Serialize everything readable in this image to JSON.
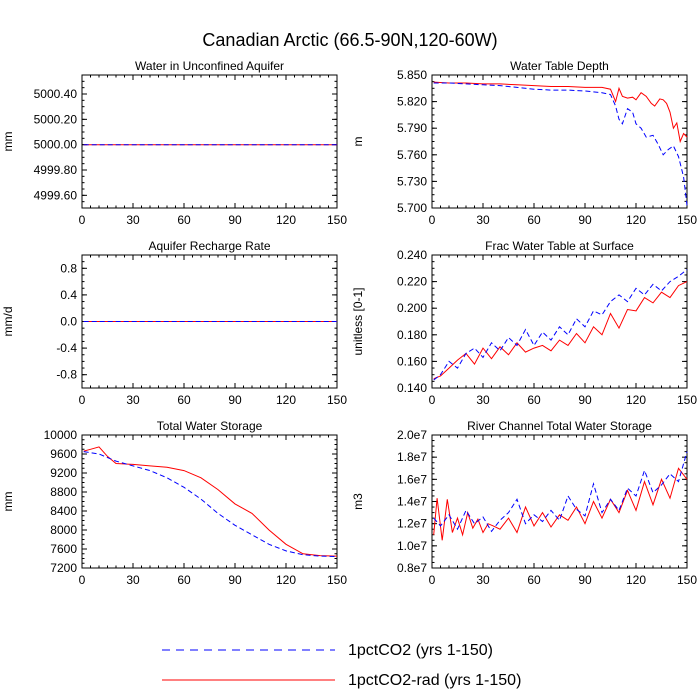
{
  "figure_title": "Canadian Arctic (66.5-90N,120-60W)",
  "legend": {
    "entries": [
      {
        "label": "1pctCO2 (yrs 1-150)",
        "color": "#0000ff",
        "dash": "dashed"
      },
      {
        "label": "1pctCO2-rad (yrs 1-150)",
        "color": "#ff0000",
        "dash": "solid"
      }
    ]
  },
  "chart_data": [
    {
      "id": "p1",
      "type": "line",
      "title": "Water in Unconfined Aquifer",
      "ylabel": "mm",
      "xlim": [
        0,
        150
      ],
      "ylim": [
        4999.5,
        5000.55
      ],
      "xticks": [
        0,
        30,
        60,
        90,
        120,
        150
      ],
      "yticks": [
        4999.6,
        4999.8,
        5000.0,
        5000.2,
        5000.4
      ],
      "ytick_labels": [
        "4999.60",
        "4999.80",
        "5000.00",
        "5000.20",
        "5000.40"
      ],
      "series": [
        {
          "name": "1pctCO2 (yrs 1-150)",
          "color": "#0000ff",
          "dash": "dashed",
          "x": [
            1,
            150
          ],
          "y": [
            5000.0,
            5000.0
          ]
        },
        {
          "name": "1pctCO2-rad (yrs 1-150)",
          "color": "#ff0000",
          "dash": "solid",
          "x": [
            1,
            150
          ],
          "y": [
            5000.0,
            5000.0
          ]
        }
      ]
    },
    {
      "id": "p2",
      "type": "line",
      "title": "Water Table Depth",
      "ylabel": "m",
      "xlim": [
        0,
        150
      ],
      "ylim": [
        5.7,
        5.85
      ],
      "xticks": [
        0,
        30,
        60,
        90,
        120,
        150
      ],
      "yticks": [
        5.7,
        5.73,
        5.76,
        5.79,
        5.82,
        5.85
      ],
      "ytick_labels": [
        "5.700",
        "5.730",
        "5.760",
        "5.790",
        "5.820",
        "5.850"
      ],
      "series": [
        {
          "name": "1pctCO2 (yrs 1-150)",
          "color": "#0000ff",
          "dash": "dashed",
          "x": [
            1,
            10,
            20,
            30,
            40,
            50,
            60,
            70,
            80,
            90,
            100,
            105,
            108,
            110,
            112,
            115,
            118,
            120,
            123,
            126,
            130,
            133,
            136,
            139,
            142,
            145,
            148,
            150
          ],
          "y": [
            5.841,
            5.841,
            5.84,
            5.839,
            5.838,
            5.836,
            5.834,
            5.833,
            5.833,
            5.832,
            5.83,
            5.828,
            5.815,
            5.8,
            5.795,
            5.812,
            5.808,
            5.795,
            5.79,
            5.78,
            5.782,
            5.772,
            5.76,
            5.766,
            5.77,
            5.758,
            5.735,
            5.703
          ]
        },
        {
          "name": "1pctCO2-rad (yrs 1-150)",
          "color": "#ff0000",
          "dash": "solid",
          "x": [
            1,
            10,
            20,
            30,
            40,
            50,
            60,
            70,
            80,
            90,
            100,
            105,
            108,
            110,
            112,
            115,
            118,
            120,
            123,
            126,
            129,
            131,
            134,
            136,
            138,
            140,
            142,
            144,
            146,
            148,
            150
          ],
          "y": [
            5.842,
            5.841,
            5.841,
            5.84,
            5.84,
            5.839,
            5.838,
            5.837,
            5.837,
            5.836,
            5.836,
            5.834,
            5.82,
            5.835,
            5.826,
            5.824,
            5.825,
            5.822,
            5.83,
            5.826,
            5.818,
            5.815,
            5.823,
            5.822,
            5.818,
            5.808,
            5.79,
            5.796,
            5.775,
            5.784,
            5.78
          ]
        }
      ]
    },
    {
      "id": "p3",
      "type": "line",
      "title": "Aquifer Recharge Rate",
      "ylabel": "mm/d",
      "xlim": [
        0,
        150
      ],
      "ylim": [
        -1.0,
        1.0
      ],
      "xticks": [
        0,
        30,
        60,
        90,
        120,
        150
      ],
      "yticks": [
        -0.8,
        -0.4,
        0.0,
        0.4,
        0.8
      ],
      "ytick_labels": [
        "-0.8",
        "-0.4",
        "0.0",
        "0.4",
        "0.8"
      ],
      "series": [
        {
          "name": "1pctCO2 (yrs 1-150)",
          "color": "#0000ff",
          "dash": "dashed",
          "x": [
            1,
            150
          ],
          "y": [
            0.0,
            0.0
          ]
        },
        {
          "name": "1pctCO2-rad (yrs 1-150)",
          "color": "#ff0000",
          "dash": "solid",
          "x": [
            1,
            150
          ],
          "y": [
            0.0,
            0.0
          ]
        }
      ]
    },
    {
      "id": "p4",
      "type": "line",
      "title": "Frac Water Table at Surface",
      "ylabel": "unitless [0-1]",
      "xlim": [
        0,
        150
      ],
      "ylim": [
        0.14,
        0.24
      ],
      "xticks": [
        0,
        30,
        60,
        90,
        120,
        150
      ],
      "yticks": [
        0.14,
        0.16,
        0.18,
        0.2,
        0.22,
        0.24
      ],
      "ytick_labels": [
        "0.140",
        "0.160",
        "0.180",
        "0.200",
        "0.220",
        "0.240"
      ],
      "series": [
        {
          "name": "1pctCO2 (yrs 1-150)",
          "color": "#0000ff",
          "dash": "dashed",
          "x": [
            1,
            5,
            10,
            15,
            20,
            25,
            30,
            35,
            40,
            45,
            50,
            55,
            60,
            65,
            70,
            75,
            80,
            85,
            90,
            95,
            100,
            105,
            110,
            115,
            120,
            125,
            130,
            135,
            140,
            145,
            150
          ],
          "y": [
            0.146,
            0.15,
            0.16,
            0.155,
            0.166,
            0.17,
            0.163,
            0.174,
            0.168,
            0.178,
            0.172,
            0.184,
            0.172,
            0.182,
            0.176,
            0.186,
            0.18,
            0.192,
            0.186,
            0.198,
            0.195,
            0.205,
            0.21,
            0.205,
            0.215,
            0.21,
            0.218,
            0.213,
            0.22,
            0.224,
            0.229
          ]
        },
        {
          "name": "1pctCO2-rad (yrs 1-150)",
          "color": "#ff0000",
          "dash": "solid",
          "x": [
            1,
            5,
            10,
            15,
            20,
            25,
            30,
            35,
            40,
            45,
            50,
            55,
            60,
            65,
            70,
            75,
            80,
            85,
            90,
            95,
            100,
            105,
            110,
            115,
            120,
            125,
            130,
            135,
            140,
            145,
            150
          ],
          "y": [
            0.147,
            0.149,
            0.155,
            0.161,
            0.166,
            0.158,
            0.17,
            0.162,
            0.171,
            0.165,
            0.174,
            0.167,
            0.17,
            0.172,
            0.168,
            0.176,
            0.172,
            0.181,
            0.174,
            0.186,
            0.18,
            0.196,
            0.185,
            0.199,
            0.198,
            0.208,
            0.204,
            0.212,
            0.208,
            0.217,
            0.22
          ]
        }
      ]
    },
    {
      "id": "p5",
      "type": "line",
      "title": "Total Water Storage",
      "ylabel": "mm",
      "xlim": [
        0,
        150
      ],
      "ylim": [
        7200,
        10000
      ],
      "xticks": [
        0,
        30,
        60,
        90,
        120,
        150
      ],
      "yticks": [
        7200,
        7600,
        8000,
        8400,
        8800,
        9200,
        9600,
        10000
      ],
      "ytick_labels": [
        "7200",
        "7600",
        "8000",
        "8400",
        "8800",
        "9200",
        "9600",
        "10000"
      ],
      "series": [
        {
          "name": "1pctCO2 (yrs 1-150)",
          "color": "#0000ff",
          "dash": "dashed",
          "x": [
            1,
            10,
            20,
            30,
            40,
            50,
            60,
            70,
            80,
            90,
            100,
            110,
            120,
            130,
            140,
            150
          ],
          "y": [
            9650,
            9600,
            9450,
            9350,
            9250,
            9100,
            8900,
            8650,
            8350,
            8100,
            7900,
            7700,
            7560,
            7480,
            7450,
            7440
          ]
        },
        {
          "name": "1pctCO2-rad (yrs 1-150)",
          "color": "#ff0000",
          "dash": "solid",
          "x": [
            1,
            5,
            10,
            15,
            20,
            30,
            40,
            50,
            60,
            70,
            80,
            90,
            100,
            110,
            120,
            130,
            140,
            150
          ],
          "y": [
            9660,
            9700,
            9750,
            9550,
            9400,
            9380,
            9350,
            9320,
            9250,
            9100,
            8850,
            8550,
            8350,
            8000,
            7700,
            7500,
            7460,
            7450
          ]
        }
      ]
    },
    {
      "id": "p6",
      "type": "line",
      "title": "River Channel Total Water Storage",
      "ylabel": "m3",
      "xlim": [
        0,
        150
      ],
      "ylim": [
        8000000,
        20000000
      ],
      "xticks": [
        0,
        30,
        60,
        90,
        120,
        150
      ],
      "yticks": [
        8000000,
        10000000,
        12000000,
        14000000,
        16000000,
        18000000,
        20000000
      ],
      "ytick_labels": [
        "0.8e7",
        "1.0e7",
        "1.2e7",
        "1.4e7",
        "1.6e7",
        "1.8e7",
        "2.0e7"
      ],
      "series": [
        {
          "name": "1pctCO2 (yrs 1-150)",
          "color": "#0000ff",
          "dash": "dashed",
          "x": [
            1,
            5,
            10,
            15,
            20,
            25,
            30,
            35,
            40,
            45,
            50,
            55,
            60,
            65,
            70,
            75,
            80,
            85,
            90,
            95,
            100,
            105,
            110,
            115,
            120,
            125,
            130,
            135,
            140,
            145,
            150
          ],
          "y": [
            12500000,
            11800000,
            12800000,
            11500000,
            13200000,
            12000000,
            12600000,
            11300000,
            12300000,
            13000000,
            14200000,
            12000000,
            12800000,
            12200000,
            13200000,
            12300000,
            14500000,
            13300000,
            12700000,
            15600000,
            13000000,
            14200000,
            13200000,
            15200000,
            14500000,
            16800000,
            14800000,
            15500000,
            16500000,
            15800000,
            18500000
          ]
        },
        {
          "name": "1pctCO2-rad (yrs 1-150)",
          "color": "#ff0000",
          "dash": "solid",
          "x": [
            1,
            3,
            6,
            9,
            12,
            15,
            18,
            21,
            24,
            27,
            30,
            33,
            36,
            40,
            45,
            50,
            55,
            60,
            65,
            70,
            75,
            80,
            85,
            90,
            95,
            100,
            105,
            110,
            115,
            120,
            125,
            130,
            135,
            140,
            145,
            150
          ],
          "y": [
            11000000,
            14300000,
            10500000,
            14200000,
            11200000,
            12500000,
            11000000,
            13000000,
            11600000,
            12400000,
            11200000,
            12000000,
            11800000,
            11500000,
            12500000,
            11200000,
            13500000,
            11800000,
            13000000,
            11700000,
            12800000,
            12300000,
            13500000,
            12000000,
            14000000,
            12500000,
            14200000,
            13000000,
            15000000,
            13200000,
            15800000,
            13700000,
            16000000,
            14300000,
            17000000,
            16000000
          ]
        }
      ]
    }
  ]
}
